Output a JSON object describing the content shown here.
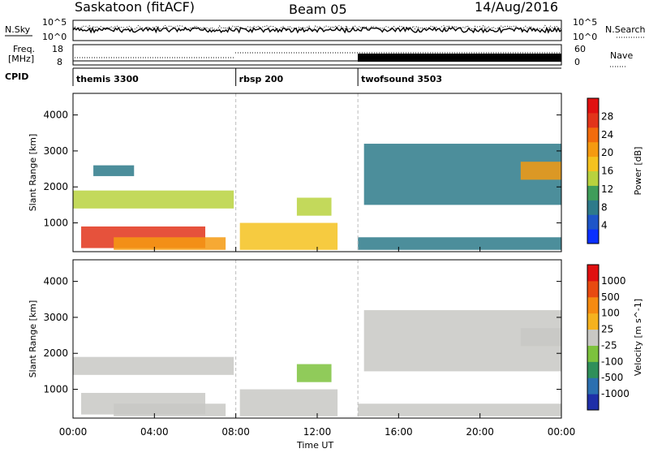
{
  "header": {
    "station": "Saskatoon (fitACF)",
    "beam": "Beam 05",
    "date": "14/Aug/2016"
  },
  "summary_panel": {
    "left_label_top": "N.Sky",
    "left_tick_top": "10^5",
    "left_tick_bottom": "10^0",
    "right_tick_top": "10^5",
    "right_tick_bottom": "10^0",
    "right_label": "N.Search"
  },
  "freq_panel": {
    "left_label_line1": "Freq.",
    "left_label_line2": "[MHz]",
    "left_tick_top": "18",
    "left_tick_bottom": "8",
    "right_tick_top": "60",
    "right_tick_bottom": "0",
    "right_label": "Nave"
  },
  "cpid_panel": {
    "label": "CPID",
    "programs": [
      {
        "name": "themis 3300",
        "start_hour": 0
      },
      {
        "name": "rbsp 200",
        "start_hour": 8
      },
      {
        "name": "twofsound 3503",
        "start_hour": 14
      }
    ]
  },
  "x_axis": {
    "title": "Time UT",
    "ticks": [
      "00:00",
      "04:00",
      "08:00",
      "12:00",
      "16:00",
      "20:00",
      "00:00"
    ]
  },
  "chart_data": [
    {
      "type": "heatmap",
      "name": "Power",
      "ylabel": "Slant Range [km]",
      "xlim_hours": [
        0,
        24
      ],
      "ylim_km": [
        200,
        4600
      ],
      "yticks": [
        "1000",
        "2000",
        "3000",
        "4000"
      ],
      "colorbar": {
        "label": "Power [dB]",
        "tick_labels": [
          "4",
          "8",
          "12",
          "16",
          "20",
          "24",
          "28"
        ],
        "range": [
          0,
          30
        ],
        "colors": [
          "#0a2fff",
          "#1d55c8",
          "#2d7a8a",
          "#3f9d5a",
          "#b8d23e",
          "#f5c21e",
          "#f59a10",
          "#f26b0c",
          "#e2341a",
          "#e01010"
        ]
      },
      "echo_regions": [
        {
          "t0": 0.0,
          "t1": 7.9,
          "r0": 1400,
          "r1": 1900,
          "level": 12
        },
        {
          "t0": 0.4,
          "t1": 6.5,
          "r0": 300,
          "r1": 900,
          "level": 24
        },
        {
          "t0": 2.0,
          "t1": 7.5,
          "r0": 250,
          "r1": 600,
          "level": 20
        },
        {
          "t0": 1.0,
          "t1": 3.0,
          "r0": 2300,
          "r1": 2600,
          "level": 6
        },
        {
          "t0": 8.2,
          "t1": 13.0,
          "r0": 250,
          "r1": 1000,
          "level": 16
        },
        {
          "t0": 11.0,
          "t1": 12.7,
          "r0": 1200,
          "r1": 1700,
          "level": 14
        },
        {
          "t0": 14.3,
          "t1": 24.0,
          "r0": 1500,
          "r1": 3200,
          "level": 6
        },
        {
          "t0": 14.0,
          "t1": 24.0,
          "r0": 250,
          "r1": 600,
          "level": 8
        },
        {
          "t0": 22.0,
          "t1": 24.0,
          "r0": 2200,
          "r1": 2700,
          "level": 18
        }
      ]
    },
    {
      "type": "heatmap",
      "name": "Velocity",
      "ylabel": "Slant Range [km]",
      "xlim_hours": [
        0,
        24
      ],
      "ylim_km": [
        200,
        4600
      ],
      "yticks": [
        "1000",
        "2000",
        "3000",
        "4000"
      ],
      "colorbar": {
        "label": "Velocity [m s^-1]",
        "tick_labels": [
          "1000",
          "500",
          "100",
          "25",
          "-25",
          "-100",
          "-500",
          "-1000"
        ],
        "range": [
          -1000,
          1000
        ],
        "colors": [
          "#1f2fa8",
          "#2b6fb0",
          "#2f8f5a",
          "#7cc23d",
          "#c8c8c4",
          "#f5b21e",
          "#f58a10",
          "#e84a10",
          "#e01010"
        ]
      },
      "echo_regions": [
        {
          "t0": 0.0,
          "t1": 7.9,
          "r0": 1400,
          "r1": 1900,
          "velocity": 0
        },
        {
          "t0": 0.4,
          "t1": 6.5,
          "r0": 300,
          "r1": 900,
          "velocity": 0
        },
        {
          "t0": 2.0,
          "t1": 7.5,
          "r0": 250,
          "r1": 600,
          "velocity": 60
        },
        {
          "t0": 8.2,
          "t1": 13.0,
          "r0": 250,
          "r1": 1000,
          "velocity": 0
        },
        {
          "t0": 11.0,
          "t1": 12.7,
          "r0": 1200,
          "r1": 1700,
          "velocity": -300
        },
        {
          "t0": 14.3,
          "t1": 24.0,
          "r0": 1500,
          "r1": 3200,
          "velocity": 0
        },
        {
          "t0": 14.0,
          "t1": 24.0,
          "r0": 250,
          "r1": 600,
          "velocity": 60
        },
        {
          "t0": 22.0,
          "t1": 24.0,
          "r0": 2200,
          "r1": 2700,
          "velocity": 0
        }
      ]
    }
  ]
}
